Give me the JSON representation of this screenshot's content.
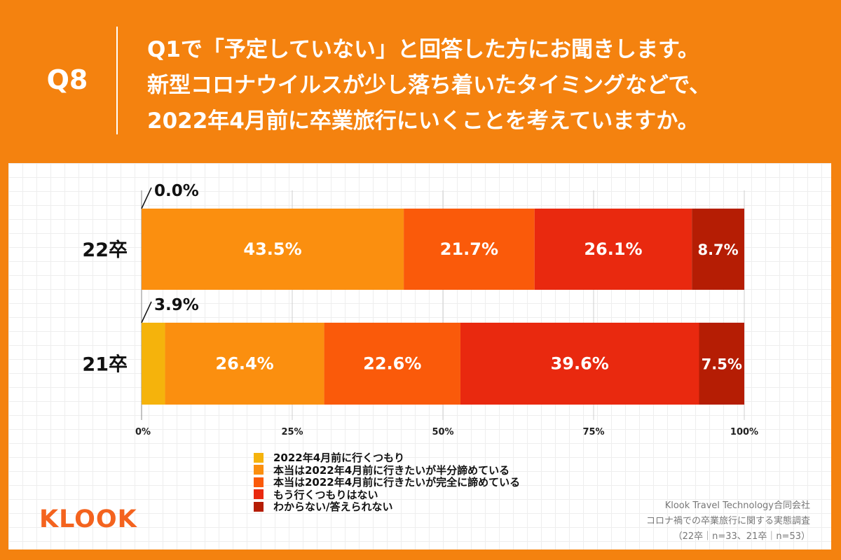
{
  "header": {
    "badge": "Q8",
    "question_lines": [
      "Q1で「予定していない」と回答した方にお聞きします。",
      "新型コロナウイルスが少し落ち着いたタイミングなどで、",
      "2022年4月前に卒業旅行にいくことを考えていますか。"
    ]
  },
  "chart_data": {
    "type": "bar",
    "orientation": "horizontal",
    "stacked": true,
    "categories": [
      "22卒",
      "21卒"
    ],
    "series": [
      {
        "name": "2022年4月前に行くつもり",
        "color": "#F5B30C",
        "values": [
          0.0,
          3.9
        ],
        "labels": [
          "0.0%",
          "3.9%"
        ]
      },
      {
        "name": "本当は2022年4月前に行きたいが半分諦めている",
        "color": "#FB8F0F",
        "values": [
          43.5,
          26.4
        ],
        "labels": [
          "43.5%",
          "26.4%"
        ]
      },
      {
        "name": "本当は2022年4月前に行きたいが完全に諦めている",
        "color": "#FA5A0A",
        "values": [
          21.7,
          22.6
        ],
        "labels": [
          "21.7%",
          "22.6%"
        ]
      },
      {
        "name": "もう行くつもりはない",
        "color": "#E9290F",
        "values": [
          26.1,
          39.6
        ],
        "labels": [
          "26.1%",
          "39.6%"
        ]
      },
      {
        "name": "わからない/答えられない",
        "color": "#B51D04",
        "values": [
          8.7,
          7.5
        ],
        "labels": [
          "8.7%",
          "7.5%"
        ]
      }
    ],
    "xlim": [
      0,
      100
    ],
    "xticks": [
      0,
      25,
      50,
      75,
      100
    ],
    "xtick_labels": [
      "0%",
      "25%",
      "50%",
      "75%",
      "100%"
    ],
    "grid": true,
    "legend_position": "bottom"
  },
  "footer": {
    "logo": "KLOOK",
    "credit_lines": [
      "Klook Travel Technology合同会社",
      "コロナ禍での卒業旅行に関する実態調査",
      "（22卒｜n=33、21卒｜n=53）"
    ]
  }
}
